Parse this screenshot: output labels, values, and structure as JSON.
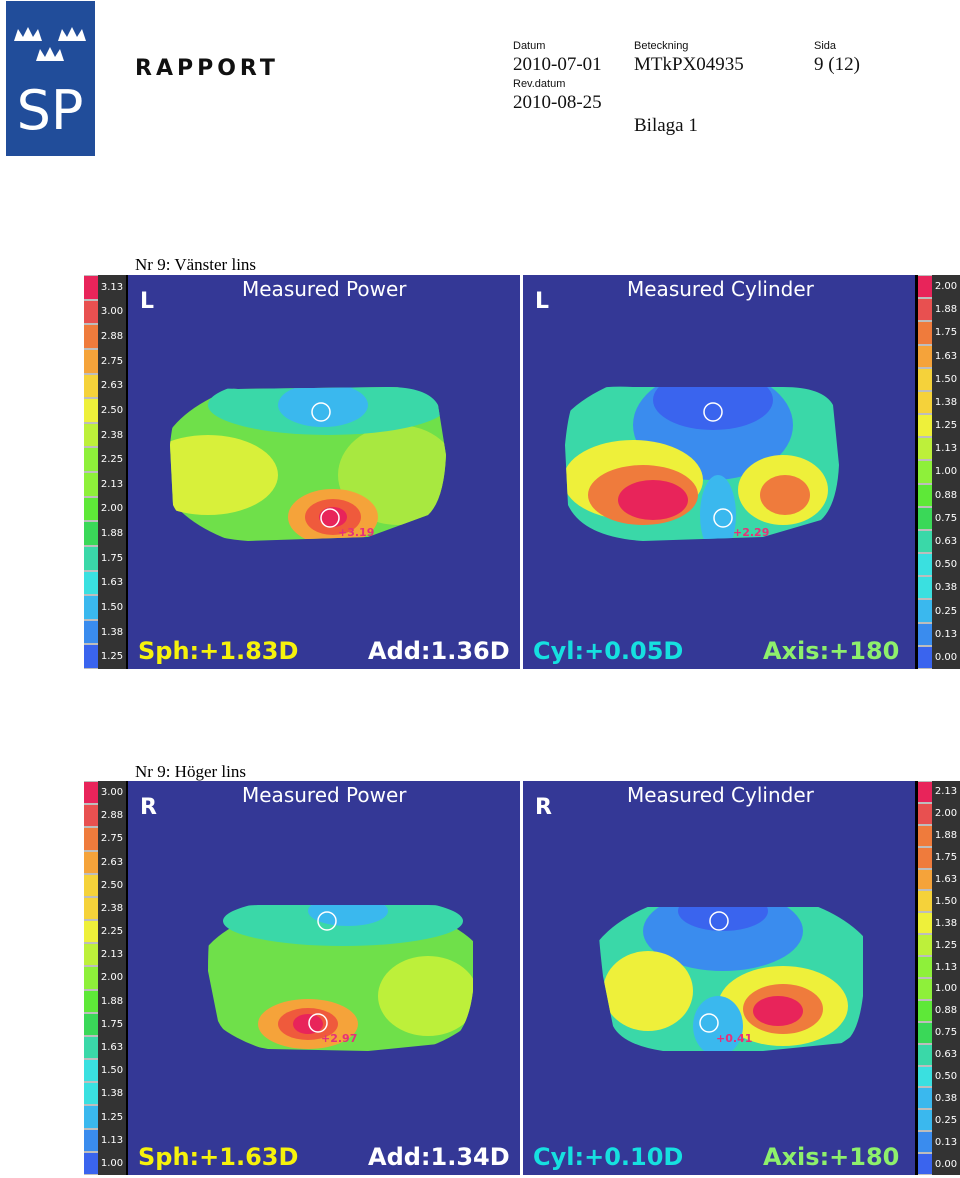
{
  "header": {
    "logo_text": "SP",
    "report_label": "RAPPORT",
    "datum_label": "Datum",
    "datum_value": "2010-07-01",
    "beteckning_label": "Beteckning",
    "beteckning_value": "MTkPX04935",
    "sida_label": "Sida",
    "sida_value": "9 (12)",
    "revdatum_label": "Rev.datum",
    "revdatum_value": "2010-08-25",
    "bilaga": "Bilaga 1"
  },
  "colors": {
    "map_background": "#343896",
    "scale_swatches": [
      "#e8245a",
      "#e85050",
      "#ef7b3c",
      "#f5a33a",
      "#f5d23a",
      "#eef03a",
      "#bdf03a",
      "#8ef03a",
      "#5ee838",
      "#3ad858",
      "#3ad8a8",
      "#3ae0e0",
      "#3ab8ee",
      "#3a8cee",
      "#3a64ee"
    ]
  },
  "figures": [
    {
      "title": "Nr 9: Vänster lins",
      "eye": "L",
      "power": {
        "title": "Measured Power",
        "scale": [
          "3.13",
          "3.00",
          "2.88",
          "2.75",
          "2.63",
          "2.50",
          "2.38",
          "2.25",
          "2.13",
          "2.00",
          "1.88",
          "1.75",
          "1.63",
          "1.50",
          "1.38",
          "1.25"
        ],
        "peak": "+3.19",
        "footer_left": "Sph:+1.83D",
        "footer_right": "Add:1.36D"
      },
      "cylinder": {
        "title": "Measured Cylinder",
        "scale": [
          "2.00",
          "1.88",
          "1.75",
          "1.63",
          "1.50",
          "1.38",
          "1.25",
          "1.13",
          "1.00",
          "0.88",
          "0.75",
          "0.63",
          "0.50",
          "0.38",
          "0.25",
          "0.13",
          "0.00"
        ],
        "peak": "+2.29",
        "footer_left": "Cyl:+0.05D",
        "footer_right": "Axis:+180"
      }
    },
    {
      "title": "Nr 9: Höger lins",
      "eye": "R",
      "power": {
        "title": "Measured Power",
        "scale": [
          "3.00",
          "2.88",
          "2.75",
          "2.63",
          "2.50",
          "2.38",
          "2.25",
          "2.13",
          "2.00",
          "1.88",
          "1.75",
          "1.63",
          "1.50",
          "1.38",
          "1.25",
          "1.13",
          "1.00"
        ],
        "peak": "+2.97",
        "footer_left": "Sph:+1.63D",
        "footer_right": "Add:1.34D"
      },
      "cylinder": {
        "title": "Measured Cylinder",
        "scale": [
          "2.13",
          "2.00",
          "1.88",
          "1.75",
          "1.63",
          "1.50",
          "1.38",
          "1.25",
          "1.13",
          "1.00",
          "0.88",
          "0.75",
          "0.63",
          "0.50",
          "0.38",
          "0.25",
          "0.13",
          "0.00"
        ],
        "peak": "+0.41",
        "footer_left": "Cyl:+0.10D",
        "footer_right": "Axis:+180"
      }
    }
  ]
}
